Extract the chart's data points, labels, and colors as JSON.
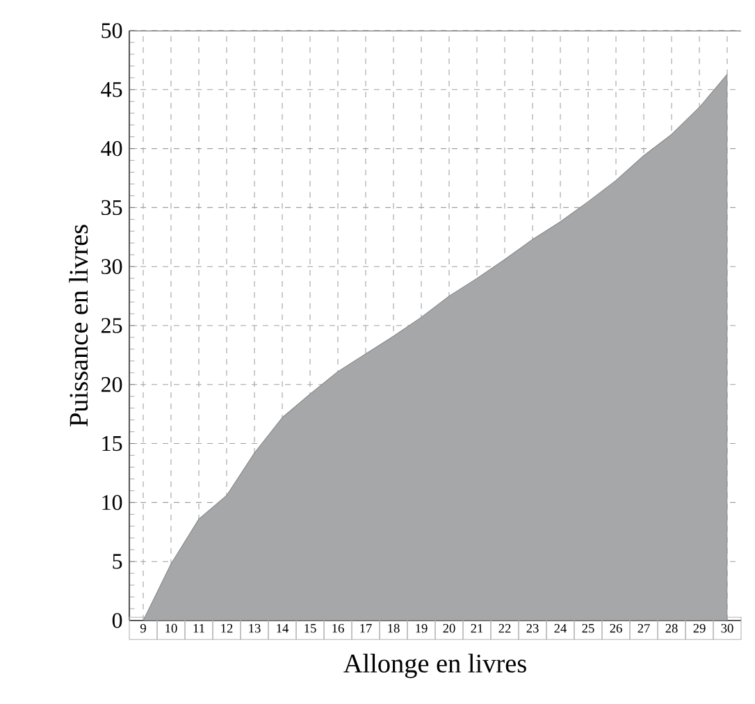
{
  "chart_data": {
    "type": "area",
    "xlabel": "Allonge en livres",
    "ylabel": "Puissance en livres",
    "x": [
      9,
      10,
      11,
      12,
      13,
      14,
      15,
      16,
      17,
      18,
      19,
      20,
      21,
      22,
      23,
      24,
      25,
      26,
      27,
      28,
      29,
      30
    ],
    "values": [
      0,
      4.8,
      8.6,
      10.6,
      14.2,
      17.2,
      19.2,
      21.1,
      22.6,
      24.1,
      25.7,
      27.5,
      29.0,
      30.6,
      32.3,
      33.8,
      35.5,
      37.3,
      39.4,
      41.2,
      43.5,
      46.3
    ],
    "color": "#a6a7a9",
    "xlim": [
      8.5,
      30.5
    ],
    "ylim": [
      0,
      50
    ],
    "xticks": [
      9,
      10,
      11,
      12,
      13,
      14,
      15,
      16,
      17,
      18,
      19,
      20,
      21,
      22,
      23,
      24,
      25,
      26,
      27,
      28,
      29,
      30
    ],
    "yticks": [
      0,
      5,
      10,
      15,
      20,
      25,
      30,
      35,
      40,
      45,
      50
    ],
    "grid": true
  }
}
